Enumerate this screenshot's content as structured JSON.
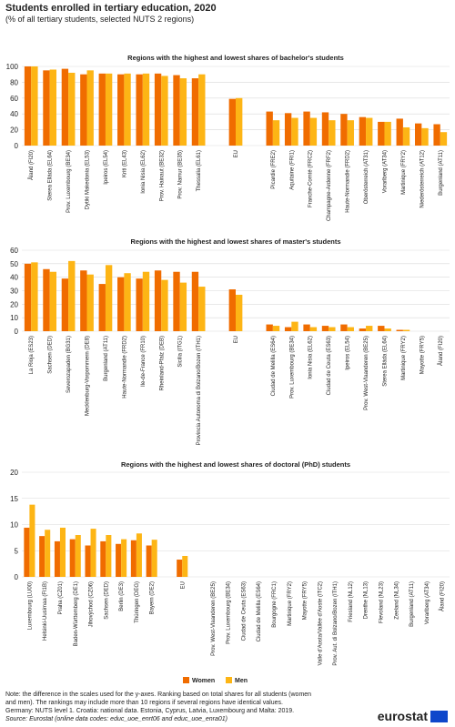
{
  "title": "Students enrolled in tertiary education, 2020",
  "subtitle": "(% of all tertiary students, selected NUTS  2 regions)",
  "chart_data": [
    {
      "type": "bar",
      "title": "Regions with the highest and lowest shares of bachelor's students",
      "categories": [
        "Åland (FI20)",
        "Sterea Elláda (EL64)",
        "Prov. Luxembourg (BE34)",
        "Dytiki Makedonia (EL53)",
        "Ipeiros (EL54)",
        "Kriti (EL43)",
        "Ionia Nisia (EL62)",
        "Prov. Hainaut (BE32)",
        "Prov. Namur (BE35)",
        "Thessalia (EL61)",
        null,
        "EU",
        null,
        "Picardie (FRE2)",
        "Aquitaine (FRI1)",
        "Franche-Comté (FRC2)",
        "Champagne-Ardenne (FRF2)",
        "Haute-Normandie (FRD2)",
        "Oberösterreich (AT31)",
        "Vorarlberg (AT34)",
        "Martinique (FRY2)",
        "Niederösterreich (AT12)",
        "Burgenland (AT11)"
      ],
      "series": [
        {
          "name": "Women",
          "color": "#f06c00",
          "values": [
            100,
            95,
            97,
            90,
            91,
            90,
            90,
            91,
            89,
            85,
            null,
            59,
            null,
            43,
            41,
            43,
            42,
            40,
            36,
            30,
            34,
            28,
            27
          ]
        },
        {
          "name": "Men",
          "color": "#fdb515",
          "values": [
            100,
            96,
            92,
            95,
            91,
            91,
            91,
            88,
            85,
            90,
            null,
            60,
            null,
            32,
            35,
            35,
            32,
            32,
            35,
            30,
            23,
            22,
            17
          ]
        }
      ],
      "ylim": [
        0,
        100
      ],
      "yticks": [
        0,
        20,
        40,
        60,
        80,
        100
      ],
      "grid": true
    },
    {
      "type": "bar",
      "title": "Regions with the highest and lowest shares of master's students",
      "categories": [
        "La Rioja (ES23)",
        "Sachsen (DED)",
        "Severozapaden (BG31)",
        "Mecklenburg-Vorpommern (DE8)",
        "Burgenland (AT11)",
        "Haute-Normandie (FRD2)",
        "Ile-de-France (FR10)",
        "Rheinland-Pfalz (DEB)",
        "Sicilia (ITG1)",
        "Provincia Autonoma di Bolzano/Bozen (ITH1)",
        null,
        "EU",
        null,
        "Ciudad de Melilla (ES64)",
        "Prov. Luxembourg (BE34)",
        "Ionia Nisia (EL62)",
        "Ciudad de Ceuta (ES63)",
        "Ipeiros (EL54)",
        "Prov. West-Vlaanderen (BE25)",
        "Sterea Elláda (EL64)",
        "Martinique (FRY2)",
        "Mayotte (FRY5)",
        "Åland (FI20)"
      ],
      "series": [
        {
          "name": "Women",
          "color": "#f06c00",
          "values": [
            50,
            46,
            39,
            45,
            35,
            40,
            39,
            45,
            44,
            44,
            null,
            31,
            null,
            5,
            3,
            5,
            4,
            5,
            2,
            4,
            1,
            0,
            0
          ]
        },
        {
          "name": "Men",
          "color": "#fdb515",
          "values": [
            51,
            44,
            52,
            42,
            49,
            43,
            44,
            38,
            36,
            33,
            null,
            27,
            null,
            4,
            7,
            3,
            3,
            3,
            4,
            2,
            1,
            0,
            0
          ]
        }
      ],
      "ylim": [
        0,
        60
      ],
      "yticks": [
        0,
        10,
        20,
        30,
        40,
        50,
        60
      ],
      "grid": true
    },
    {
      "type": "bar",
      "title": "Regions with the highest and lowest shares of doctoral (PhD) students",
      "categories": [
        "Luxembourg (LU00)",
        "Helsinki-Uusimaa (FI1B)",
        "Praha (CZ01)",
        "Baden-Württemberg (DE1)",
        "Jihovýchod (CZ06)",
        "Sachsen (DED)",
        "Berlin (DE3)",
        "Thüringen (DEG)",
        "Bayern (DE2)",
        null,
        "EU",
        null,
        "Prov. West-Vlaanderen (BE25)",
        "Prov. Luxembourg (BE34)",
        "Ciudad de Ceuta (ES63)",
        "Ciudad de Melilla (ES64)",
        "Bourgogne (FRC1)",
        "Martinique (FRY2)",
        "Mayotte (FRY5)",
        "Valle d'Aosta/Vallée d'Aoste (ITC2)",
        "Prov. Aut. di Bolzano/Bozen (ITH1)",
        "Friesland (NL12)",
        "Drenthe (NL13)",
        "Flevoland (NL23)",
        "Zeeland (NL34)",
        "Burgenland (AT11)",
        "Vorarlberg (AT34)",
        "Åland (FI20)"
      ],
      "series": [
        {
          "name": "Women",
          "color": "#f06c00",
          "values": [
            9.4,
            7.8,
            6.8,
            7.2,
            6.0,
            6.8,
            6.3,
            7.0,
            6.0,
            null,
            3.3,
            null,
            0,
            0,
            0,
            0,
            0,
            0,
            0,
            0,
            0,
            0,
            0,
            0,
            0,
            0,
            0,
            0
          ]
        },
        {
          "name": "Men",
          "color": "#fdb515",
          "values": [
            13.8,
            9.0,
            9.4,
            8.0,
            9.2,
            8.0,
            7.2,
            8.3,
            7.1,
            null,
            4.0,
            null,
            0,
            0,
            0,
            0,
            0,
            0,
            0,
            0,
            0,
            0,
            0,
            0,
            0,
            0,
            0,
            0
          ]
        }
      ],
      "ylim": [
        0,
        20
      ],
      "yticks": [
        0,
        5,
        10,
        15,
        20
      ],
      "grid": true
    }
  ],
  "note": [
    "Note: the difference in the scales used for the y-axes. Ranking based on total shares for all students (women",
    "and men). The rankings may include more than 10 regions if several regions have identical values.",
    "Germany: NUTS level 1. Croatia: national data. Estonia, Cyprus, Latvia, Luxembourg and Malta: 2019."
  ],
  "source": "Source: Eurostat (online data codes: educ_uoe_enrt06 and educ_uoe_enra01)",
  "logo": "eurostat"
}
